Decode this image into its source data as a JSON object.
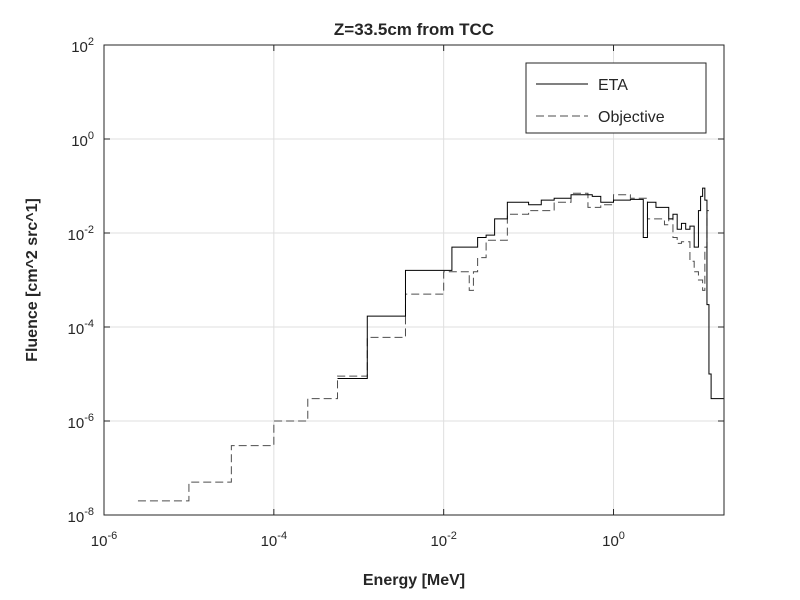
{
  "chart_data": {
    "type": "line",
    "title": "Z=33.5cm from TCC",
    "xlabel": "Energy [MeV]",
    "ylabel": "Fluence [cm^2 src^1]",
    "x_scale": "log",
    "y_scale": "log",
    "xlim": [
      1e-06,
      20
    ],
    "ylim": [
      1e-08,
      100
    ],
    "x_ticks": [
      {
        "value": 1e-06,
        "base": "10",
        "exp": "-6"
      },
      {
        "value": 0.0001,
        "base": "10",
        "exp": "-4"
      },
      {
        "value": 0.01,
        "base": "10",
        "exp": "-2"
      },
      {
        "value": 1,
        "base": "10",
        "exp": "0"
      }
    ],
    "y_ticks": [
      {
        "value": 1e-08,
        "base": "10",
        "exp": "-8"
      },
      {
        "value": 1e-06,
        "base": "10",
        "exp": "-6"
      },
      {
        "value": 0.0001,
        "base": "10",
        "exp": "-4"
      },
      {
        "value": 0.01,
        "base": "10",
        "exp": "-2"
      },
      {
        "value": 1,
        "base": "10",
        "exp": "0"
      },
      {
        "value": 100,
        "base": "10",
        "exp": "2"
      }
    ],
    "grid": true,
    "legend_position": "top-right",
    "series": [
      {
        "name": "ETA",
        "style": "solid",
        "color": "#000000",
        "x": [
          0.000562,
          0.00126,
          0.00126,
          0.00355,
          0.00355,
          0.0125,
          0.0125,
          0.0251,
          0.0251,
          0.0316,
          0.0316,
          0.0398,
          0.0398,
          0.0562,
          0.0562,
          0.1,
          0.1,
          0.141,
          0.141,
          0.2,
          0.2,
          0.316,
          0.316,
          0.562,
          0.562,
          0.708,
          0.708,
          1.0,
          1.0,
          1.58,
          1.58,
          2.24,
          2.24,
          2.51,
          2.51,
          3.16,
          3.16,
          4.47,
          4.47,
          5.01,
          5.01,
          5.62,
          5.62,
          6.31,
          6.31,
          7.08,
          7.08,
          7.94,
          7.94,
          8.91,
          8.91,
          10.0,
          10.0,
          10.6,
          10.6,
          11.2,
          11.2,
          11.9,
          11.9,
          12.6,
          12.6,
          13.3,
          13.3,
          14.1,
          14.1,
          15.0,
          15.0,
          15.8,
          15.8,
          17.8,
          17.8,
          20.0
        ],
        "y": [
          8e-06,
          8e-06,
          0.00017,
          0.00017,
          0.0016,
          0.0016,
          0.005,
          0.005,
          0.008,
          0.008,
          0.009,
          0.009,
          0.02,
          0.02,
          0.045,
          0.045,
          0.04,
          0.04,
          0.05,
          0.05,
          0.055,
          0.055,
          0.065,
          0.065,
          0.06,
          0.06,
          0.045,
          0.045,
          0.05,
          0.05,
          0.052,
          0.052,
          0.008,
          0.008,
          0.045,
          0.045,
          0.035,
          0.035,
          0.02,
          0.02,
          0.025,
          0.025,
          0.012,
          0.012,
          0.016,
          0.016,
          0.012,
          0.012,
          0.014,
          0.014,
          0.005,
          0.005,
          0.03,
          0.03,
          0.06,
          0.06,
          0.09,
          0.09,
          0.05,
          0.05,
          0.0003,
          0.0003,
          1e-05,
          1e-05,
          3e-06,
          3e-06,
          3e-06,
          3e-06,
          3e-06,
          3e-06,
          3e-06,
          3e-06
        ]
      },
      {
        "name": "Objective",
        "style": "dashed",
        "color": "#4d4d4d",
        "x": [
          2.51e-06,
          1e-05,
          1e-05,
          3.16e-05,
          3.16e-05,
          0.0001,
          0.0001,
          0.000251,
          0.000251,
          0.000562,
          0.000562,
          0.00126,
          0.00126,
          0.00355,
          0.00355,
          0.01,
          0.01,
          0.02,
          0.02,
          0.0224,
          0.0224,
          0.0251,
          0.0251,
          0.0316,
          0.0316,
          0.0562,
          0.0562,
          0.1,
          0.1,
          0.2,
          0.2,
          0.316,
          0.316,
          0.5,
          0.5,
          0.708,
          0.708,
          1.0,
          1.0,
          1.58,
          1.58,
          2.51,
          2.51,
          3.98,
          3.98,
          4.47,
          4.47,
          5.01,
          5.01,
          5.62,
          5.62,
          6.31,
          6.31,
          7.94,
          7.94,
          8.91,
          8.91,
          10.0,
          10.0,
          11.2,
          11.2,
          11.9,
          11.9,
          12.6,
          12.6,
          13.3,
          13.3
        ],
        "y": [
          2e-08,
          2e-08,
          5e-08,
          5e-08,
          3e-07,
          3e-07,
          1e-06,
          1e-06,
          3e-06,
          3e-06,
          9e-06,
          9e-06,
          6e-05,
          6e-05,
          0.0005,
          0.0005,
          0.0015,
          0.0015,
          0.0006,
          0.0006,
          0.0015,
          0.0015,
          0.003,
          0.003,
          0.007,
          0.007,
          0.025,
          0.025,
          0.03,
          0.03,
          0.045,
          0.045,
          0.07,
          0.07,
          0.035,
          0.035,
          0.04,
          0.04,
          0.065,
          0.065,
          0.055,
          0.055,
          0.02,
          0.02,
          0.015,
          0.015,
          0.02,
          0.02,
          0.008,
          0.008,
          0.006,
          0.006,
          0.0065,
          0.0065,
          0.0025,
          0.0025,
          0.0015,
          0.0015,
          0.001,
          0.001,
          0.0006,
          0.0006,
          0.005,
          0.005,
          0.03,
          0.03,
          0.03
        ]
      }
    ]
  }
}
